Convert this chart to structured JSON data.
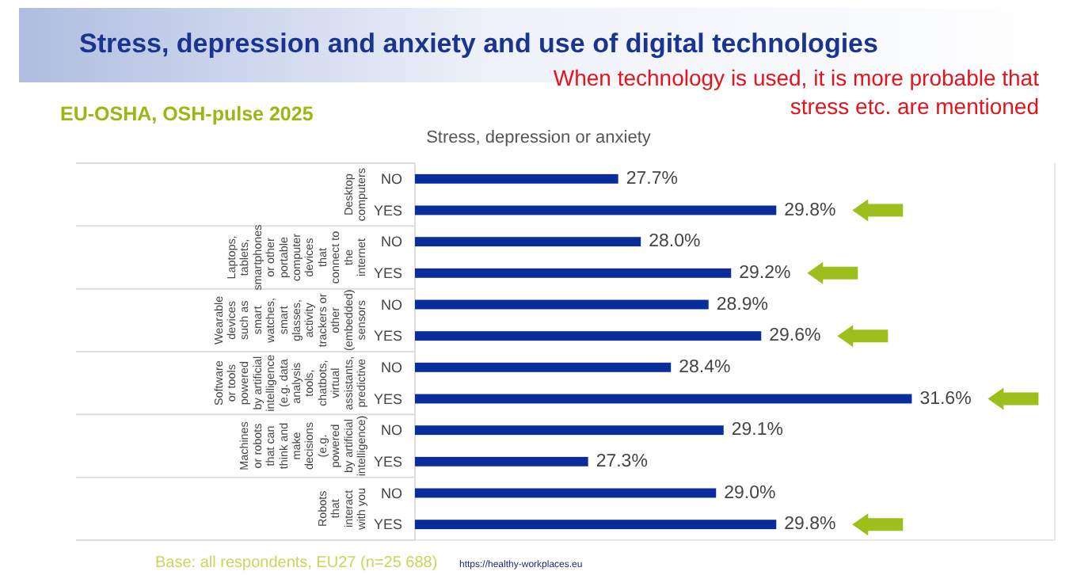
{
  "chart_data": {
    "type": "bar",
    "orientation": "horizontal",
    "title": "Stress, depression and anxiety and use of digital technologies",
    "subtitle": "Stress, depression or anxiety",
    "categories": [
      "NO",
      "YES",
      "NO",
      "YES",
      "NO",
      "YES",
      "NO",
      "YES",
      "NO",
      "YES",
      "NO",
      "YES"
    ],
    "values": [
      27.7,
      29.8,
      28.0,
      29.2,
      28.9,
      29.6,
      28.4,
      31.6,
      29.1,
      27.3,
      29.0,
      29.8
    ],
    "value_labels": [
      "27.7%",
      "29.8%",
      "28.0%",
      "29.2%",
      "28.9%",
      "29.6%",
      "28.4%",
      "31.6%",
      "29.1%",
      "27.3%",
      "29.0%",
      "29.8%"
    ],
    "color": "#0a2d9c",
    "xlim": [
      25,
      33.5
    ],
    "annotations": [
      "Desktop computers",
      "Laptops, tablets, smartphones or other portable computer devices that connect to the internet",
      "Wearable devices such as smart watches, smart glasses, activity trackers or other (embedded) sensors",
      "Software or tools powered by artificial intelligence (e.g. data analysis tools, chatbots, virtual assistants, predictive",
      "Machines or robots that can think and make decisions (e.g. powered by artificial intelligence)",
      "Robots that interact with you",
      "EU-OSHA, OSH-pulse 2025",
      "When technology is used, it is more probable that stress etc. are mentioned",
      "Base: all respondents, EU27 (n=25 688)",
      "https://healthy-workplaces.eu"
    ]
  }
}
